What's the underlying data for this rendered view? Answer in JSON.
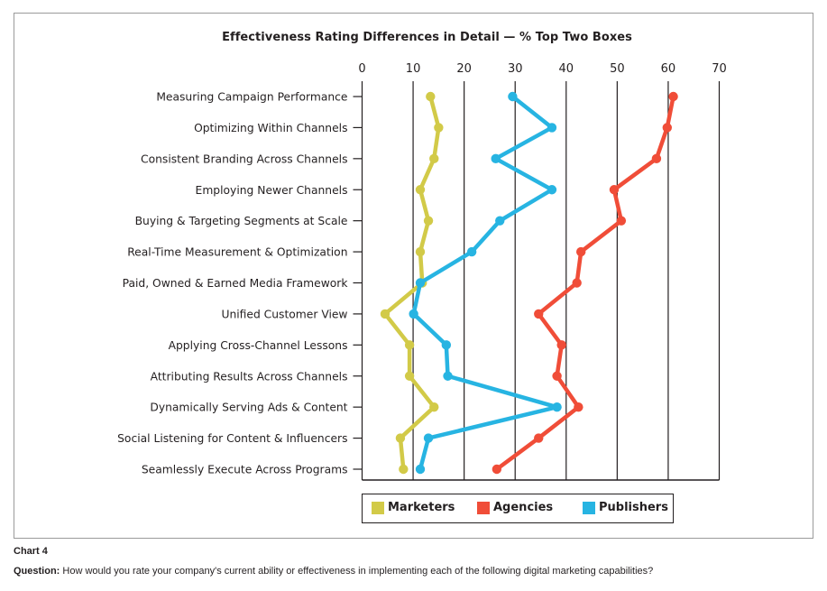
{
  "chart_data": {
    "type": "line",
    "orientation": "horizontal-categories",
    "title": "Effectiveness Rating Differences in Detail — % Top Two Boxes",
    "xlabel": "",
    "ylabel": "",
    "xlim": [
      0,
      70
    ],
    "xticks": [
      0,
      10,
      20,
      30,
      40,
      50,
      60,
      70
    ],
    "grid": true,
    "legend_position": "bottom",
    "categories": [
      "Measuring Campaign Performance",
      "Optimizing Within Channels",
      "Consistent Branding Across Channels",
      "Employing Newer Channels",
      "Buying & Targeting Segments at Scale",
      "Real-Time Measurement & Optimization",
      "Paid, Owned & Earned Media Framework",
      "Unified Customer View",
      "Applying Cross-Channel Lessons",
      "Attributing Results Across Channels",
      "Dynamically Serving Ads & Content",
      "Social Listening for Content & Influencers",
      "Seamlessly Execute Across Programs"
    ],
    "series": [
      {
        "name": "Marketers",
        "color": "#D2CA48",
        "values": [
          13.4,
          15.0,
          14.1,
          11.4,
          13.0,
          11.4,
          11.8,
          4.5,
          9.3,
          9.3,
          14.1,
          7.5,
          8.1
        ]
      },
      {
        "name": "Agencies",
        "color": "#F04D38",
        "values": [
          61.0,
          59.8,
          57.7,
          49.4,
          50.8,
          42.9,
          42.1,
          34.6,
          39.1,
          38.2,
          42.4,
          34.6,
          26.4
        ]
      },
      {
        "name": "Publishers",
        "color": "#27B4E2",
        "values": [
          29.5,
          37.2,
          26.2,
          37.2,
          27.0,
          21.5,
          11.4,
          10.1,
          16.5,
          16.8,
          38.2,
          13.0,
          11.4
        ]
      }
    ]
  },
  "caption": {
    "chart_number": "Chart 4",
    "question_label": "Question:",
    "question_text": " How would you rate your company's current ability or effectiveness in implementing each of the following digital marketing capabilities?"
  }
}
